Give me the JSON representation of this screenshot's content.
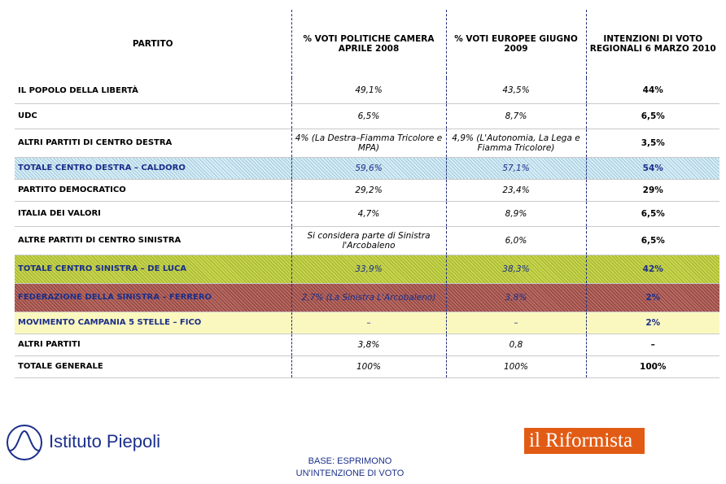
{
  "header": {
    "col1": "PARTITO",
    "col2": "% VOTI POLITICHE CAMERA APRILE 2008",
    "col3": "% VOTI EUROPEE GIUGNO 2009",
    "col4": "INTENZIONI DI VOTO REGIONALI 6 MARZO 2010"
  },
  "rows": [
    {
      "party": "IL POPOLO DELLA LIBERTÀ",
      "v2008": "49,1%",
      "v2009": "43,5%",
      "v2010": "44%"
    },
    {
      "party": "UDC",
      "v2008": "6,5%",
      "v2009": "8,7%",
      "v2010": "6,5%"
    },
    {
      "party": "ALTRI PARTITI DI CENTRO DESTRA",
      "v2008": "4% (La Destra–Fiamma Tricolore e MPA)",
      "v2009": "4,9% (L'Autonomia, La Lega e Fiamma Tricolore)",
      "v2010": "3,5%"
    },
    {
      "party": "TOTALE CENTRO DESTRA – CALDORO",
      "v2008": "59,6%",
      "v2009": "57,1%",
      "v2010": "54%"
    },
    {
      "party": "PARTITO DEMOCRATICO",
      "v2008": "29,2%",
      "v2009": "23,4%",
      "v2010": "29%"
    },
    {
      "party": "ITALIA DEI VALORI",
      "v2008": "4,7%",
      "v2009": "8,9%",
      "v2010": "6,5%"
    },
    {
      "party": "ALTRE PARTITI DI CENTRO SINISTRA",
      "v2008": "Si considera parte di Sinistra l'Arcobaleno",
      "v2009": "6,0%",
      "v2010": "6,5%"
    },
    {
      "party": "TOTALE CENTRO SINISTRA – DE LUCA",
      "v2008": "33,9%",
      "v2009": "38,3%",
      "v2010": "42%"
    },
    {
      "party": "FEDERAZIONE DELLA SINISTRA – FERRERO",
      "v2008": "2,7% (La Sinistra L'Arcobaleno)",
      "v2009": "3,8%",
      "v2010": "2%"
    },
    {
      "party": "MOVIMENTO CAMPANIA 5 STELLE – FICO",
      "v2008": "–",
      "v2009": "–",
      "v2010": "2%"
    },
    {
      "party": "ALTRI PARTITI",
      "v2008": "3,8%",
      "v2009": "0,8",
      "v2010": "–"
    },
    {
      "party": "TOTALE GENERALE",
      "v2008": "100%",
      "v2009": "100%",
      "v2010": "100%"
    }
  ],
  "footer": {
    "piepoli": "Istituto Piepoli",
    "riformista": "il Riformista",
    "base_line1": "BASE:  ESPRIMONO",
    "base_line2": "UN'INTENZIONE  DI  VOTO"
  },
  "colors": {
    "navy": "#1b2f8a",
    "cdx": "#d8eef6",
    "csx": "#c8d64a",
    "fed": "#b86a63",
    "m5s": "#fbf8bf",
    "riformista": "#e25b14"
  }
}
